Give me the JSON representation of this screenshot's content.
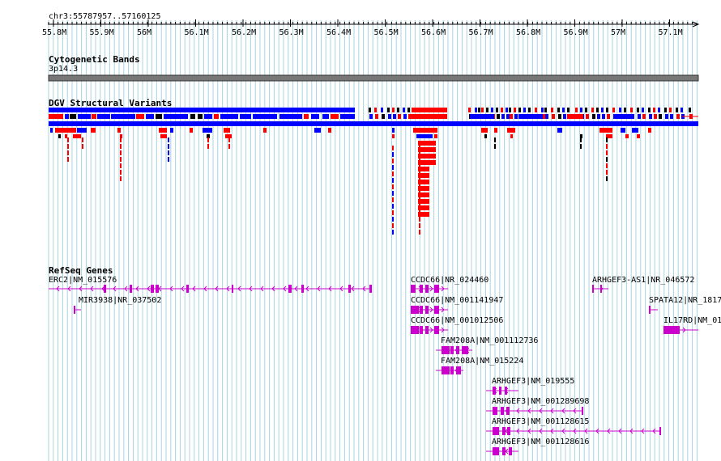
{
  "ruler": {
    "position_label": "chr3:55787957..57160125",
    "ticks": [
      "55.8M",
      "55.9M",
      "56M",
      "56.1M",
      "56.2M",
      "56.3M",
      "56.4M",
      "56.5M",
      "56.6M",
      "56.7M",
      "56.8M",
      "56.9M",
      "57M",
      "57.1M"
    ]
  },
  "tracks": {
    "cytoband": {
      "title": "Cytogenetic Bands",
      "band_label": "3p14.3"
    },
    "dgv": {
      "title": "DGV Structural Variants",
      "gain_color": "#0000ff",
      "loss_color": "#ff0000",
      "other_color": "#000000"
    },
    "refseq": {
      "title": "RefSeq Genes",
      "gene_color": "#cc00cc",
      "genes": [
        {
          "label": "ERC2|NM_015576"
        },
        {
          "label": "MIR3938|NR_037502"
        },
        {
          "label": "CCDC66|NR_024460"
        },
        {
          "label": "CCDC66|NM_001141947"
        },
        {
          "label": "CCDC66|NM_001012506"
        },
        {
          "label": "FAM208A|NM_001112736"
        },
        {
          "label": "FAM208A|NM_015224"
        },
        {
          "label": "ARHGEF3|NM_019555"
        },
        {
          "label": "ARHGEF3|NM_001289698"
        },
        {
          "label": "ARHGEF3|NM_001128615"
        },
        {
          "label": "ARHGEF3|NM_001128616"
        },
        {
          "label": "ARHGEF3-AS1|NR_046572"
        },
        {
          "label": "SPATA12|NR_1817"
        },
        {
          "label": "IL17RD|NM_01"
        }
      ]
    }
  }
}
